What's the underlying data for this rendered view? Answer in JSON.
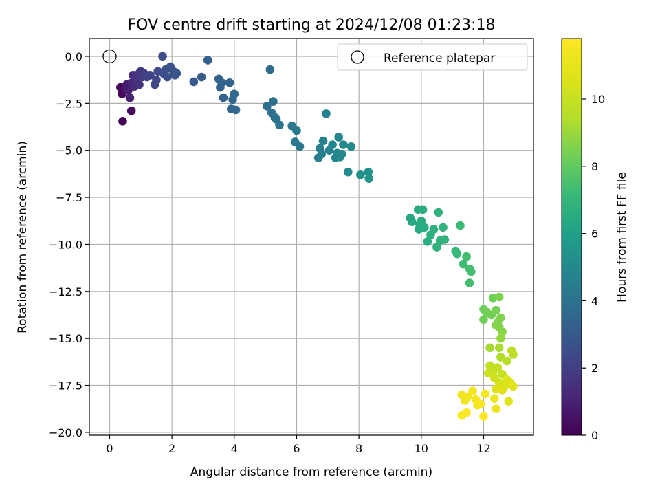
{
  "chart_data": {
    "type": "scatter",
    "title": "FOV centre drift starting at 2024/12/08 01:23:18",
    "xlabel": "Angular distance from reference (arcmin)",
    "ylabel": "Rotation from reference (arcmin)",
    "xlim": [
      -0.65,
      13.6
    ],
    "ylim": [
      -20.15,
      0.95
    ],
    "xticks": [
      0,
      2,
      4,
      6,
      8,
      10,
      12
    ],
    "yticks": [
      0.0,
      -2.5,
      -5.0,
      -7.5,
      -10.0,
      -12.5,
      -15.0,
      -17.5,
      -20.0
    ],
    "xtick_labels": [
      "0",
      "2",
      "4",
      "6",
      "8",
      "10",
      "12"
    ],
    "ytick_labels": [
      "0.0",
      "−2.5",
      "−5.0",
      "−7.5",
      "−10.0",
      "−12.5",
      "−15.0",
      "−17.5",
      "−20.0"
    ],
    "grid": true,
    "legend": {
      "position": "top-right",
      "label": "Reference platepar"
    },
    "reference_point": {
      "x": 0,
      "y": 0
    },
    "colorbar": {
      "label": "Hours from first FF file",
      "colormap": "viridis",
      "range": [
        0,
        11.8
      ],
      "ticks": [
        0,
        2,
        4,
        6,
        8,
        10
      ],
      "tick_labels": [
        "0",
        "2",
        "4",
        "6",
        "8",
        "10"
      ]
    },
    "points": [
      {
        "x": 0.35,
        "y": -1.65,
        "t": 0.2
      },
      {
        "x": 0.4,
        "y": -2.0,
        "t": 0.2
      },
      {
        "x": 0.42,
        "y": -3.45,
        "t": 0.1
      },
      {
        "x": 0.5,
        "y": -1.7,
        "t": 0.5
      },
      {
        "x": 0.55,
        "y": -1.5,
        "t": 0.8
      },
      {
        "x": 0.6,
        "y": -1.8,
        "t": 0.9
      },
      {
        "x": 0.65,
        "y": -2.2,
        "t": 1.0
      },
      {
        "x": 0.7,
        "y": -2.9,
        "t": 0.3
      },
      {
        "x": 0.72,
        "y": -1.4,
        "t": 1.2
      },
      {
        "x": 0.75,
        "y": -1.0,
        "t": 1.4
      },
      {
        "x": 0.8,
        "y": -1.6,
        "t": 1.3
      },
      {
        "x": 0.85,
        "y": -1.2,
        "t": 1.5
      },
      {
        "x": 0.9,
        "y": -1.0,
        "t": 1.6
      },
      {
        "x": 0.95,
        "y": -0.9,
        "t": 1.7
      },
      {
        "x": 0.95,
        "y": -1.5,
        "t": 1.6
      },
      {
        "x": 1.0,
        "y": -0.8,
        "t": 1.8
      },
      {
        "x": 1.05,
        "y": -1.1,
        "t": 1.9
      },
      {
        "x": 1.1,
        "y": -0.9,
        "t": 2.0
      },
      {
        "x": 1.2,
        "y": -1.1,
        "t": 2.1
      },
      {
        "x": 1.3,
        "y": -1.0,
        "t": 2.1
      },
      {
        "x": 1.45,
        "y": -1.5,
        "t": 2.3
      },
      {
        "x": 1.5,
        "y": -1.25,
        "t": 2.3
      },
      {
        "x": 1.55,
        "y": -0.8,
        "t": 2.4
      },
      {
        "x": 1.7,
        "y": 0.0,
        "t": 2.5
      },
      {
        "x": 1.75,
        "y": -0.95,
        "t": 2.5
      },
      {
        "x": 1.8,
        "y": -0.7,
        "t": 2.6
      },
      {
        "x": 1.85,
        "y": -1.1,
        "t": 2.6
      },
      {
        "x": 1.95,
        "y": -0.55,
        "t": 2.7
      },
      {
        "x": 2.05,
        "y": -0.8,
        "t": 2.7
      },
      {
        "x": 2.1,
        "y": -1.0,
        "t": 2.8
      },
      {
        "x": 2.15,
        "y": -0.9,
        "t": 2.8
      },
      {
        "x": 2.7,
        "y": -1.35,
        "t": 3.0
      },
      {
        "x": 2.95,
        "y": -1.1,
        "t": 3.1
      },
      {
        "x": 3.15,
        "y": -0.2,
        "t": 3.2
      },
      {
        "x": 3.5,
        "y": -1.2,
        "t": 3.3
      },
      {
        "x": 3.55,
        "y": -1.65,
        "t": 3.3
      },
      {
        "x": 3.6,
        "y": -1.4,
        "t": 3.35
      },
      {
        "x": 3.65,
        "y": -2.2,
        "t": 3.4
      },
      {
        "x": 3.85,
        "y": -1.4,
        "t": 3.4
      },
      {
        "x": 3.9,
        "y": -2.8,
        "t": 3.5
      },
      {
        "x": 3.95,
        "y": -2.3,
        "t": 3.5
      },
      {
        "x": 4.0,
        "y": -2.0,
        "t": 3.55
      },
      {
        "x": 4.05,
        "y": -2.85,
        "t": 3.6
      },
      {
        "x": 5.05,
        "y": -2.65,
        "t": 3.8
      },
      {
        "x": 5.15,
        "y": -0.7,
        "t": 3.7
      },
      {
        "x": 5.2,
        "y": -3.0,
        "t": 3.9
      },
      {
        "x": 5.25,
        "y": -2.4,
        "t": 3.9
      },
      {
        "x": 5.3,
        "y": -3.25,
        "t": 4.0
      },
      {
        "x": 5.35,
        "y": -3.35,
        "t": 4.0
      },
      {
        "x": 5.45,
        "y": -3.65,
        "t": 4.1
      },
      {
        "x": 5.85,
        "y": -3.7,
        "t": 4.2
      },
      {
        "x": 5.95,
        "y": -4.55,
        "t": 4.3
      },
      {
        "x": 6.0,
        "y": -3.95,
        "t": 4.3
      },
      {
        "x": 6.1,
        "y": -4.8,
        "t": 4.35
      },
      {
        "x": 6.7,
        "y": -5.4,
        "t": 4.6
      },
      {
        "x": 6.75,
        "y": -4.9,
        "t": 4.6
      },
      {
        "x": 6.8,
        "y": -5.2,
        "t": 4.65
      },
      {
        "x": 6.85,
        "y": -4.5,
        "t": 4.7
      },
      {
        "x": 6.95,
        "y": -3.05,
        "t": 4.7
      },
      {
        "x": 7.05,
        "y": -5.0,
        "t": 4.75
      },
      {
        "x": 7.15,
        "y": -4.7,
        "t": 4.8
      },
      {
        "x": 7.25,
        "y": -5.4,
        "t": 4.85
      },
      {
        "x": 7.3,
        "y": -5.15,
        "t": 4.9
      },
      {
        "x": 7.35,
        "y": -4.3,
        "t": 4.9
      },
      {
        "x": 7.4,
        "y": -5.35,
        "t": 4.95
      },
      {
        "x": 7.45,
        "y": -5.2,
        "t": 5.0
      },
      {
        "x": 7.5,
        "y": -4.7,
        "t": 5.0
      },
      {
        "x": 7.65,
        "y": -6.15,
        "t": 5.1
      },
      {
        "x": 7.75,
        "y": -4.8,
        "t": 5.1
      },
      {
        "x": 8.05,
        "y": -6.3,
        "t": 5.3
      },
      {
        "x": 8.3,
        "y": -6.15,
        "t": 5.35
      },
      {
        "x": 8.32,
        "y": -6.5,
        "t": 5.4
      },
      {
        "x": 9.65,
        "y": -8.6,
        "t": 6.3
      },
      {
        "x": 9.7,
        "y": -8.8,
        "t": 6.35
      },
      {
        "x": 9.9,
        "y": -8.15,
        "t": 6.4
      },
      {
        "x": 9.92,
        "y": -9.2,
        "t": 6.45
      },
      {
        "x": 9.95,
        "y": -8.95,
        "t": 6.45
      },
      {
        "x": 10.0,
        "y": -8.75,
        "t": 6.5
      },
      {
        "x": 10.05,
        "y": -8.15,
        "t": 6.5
      },
      {
        "x": 10.1,
        "y": -9.1,
        "t": 6.55
      },
      {
        "x": 10.2,
        "y": -9.85,
        "t": 6.6
      },
      {
        "x": 10.3,
        "y": -9.5,
        "t": 6.7
      },
      {
        "x": 10.4,
        "y": -9.2,
        "t": 6.75
      },
      {
        "x": 10.5,
        "y": -10.15,
        "t": 6.8
      },
      {
        "x": 10.55,
        "y": -8.3,
        "t": 6.8
      },
      {
        "x": 10.6,
        "y": -9.8,
        "t": 6.85
      },
      {
        "x": 10.7,
        "y": -9.1,
        "t": 6.9
      },
      {
        "x": 10.75,
        "y": -9.75,
        "t": 6.9
      },
      {
        "x": 11.1,
        "y": -10.35,
        "t": 7.1
      },
      {
        "x": 11.15,
        "y": -10.5,
        "t": 7.15
      },
      {
        "x": 11.25,
        "y": -9.0,
        "t": 7.2
      },
      {
        "x": 11.35,
        "y": -11.05,
        "t": 7.3
      },
      {
        "x": 11.45,
        "y": -10.65,
        "t": 7.35
      },
      {
        "x": 11.55,
        "y": -11.3,
        "t": 7.4
      },
      {
        "x": 11.6,
        "y": -11.45,
        "t": 7.45
      },
      {
        "x": 11.55,
        "y": -12.05,
        "t": 7.4
      },
      {
        "x": 12.0,
        "y": -13.45,
        "t": 8.2
      },
      {
        "x": 12.0,
        "y": -14.0,
        "t": 8.25
      },
      {
        "x": 12.1,
        "y": -13.6,
        "t": 8.3
      },
      {
        "x": 12.25,
        "y": -13.75,
        "t": 8.35
      },
      {
        "x": 12.3,
        "y": -12.85,
        "t": 8.3
      },
      {
        "x": 12.4,
        "y": -13.5,
        "t": 8.4
      },
      {
        "x": 12.45,
        "y": -14.15,
        "t": 8.45
      },
      {
        "x": 12.5,
        "y": -12.8,
        "t": 8.5
      },
      {
        "x": 12.55,
        "y": -13.9,
        "t": 8.55
      },
      {
        "x": 12.5,
        "y": -14.4,
        "t": 8.6
      },
      {
        "x": 12.6,
        "y": -14.65,
        "t": 8.7
      },
      {
        "x": 12.4,
        "y": -14.3,
        "t": 8.65
      },
      {
        "x": 12.55,
        "y": -15.0,
        "t": 8.9
      },
      {
        "x": 12.2,
        "y": -15.5,
        "t": 9.2
      },
      {
        "x": 12.5,
        "y": -15.5,
        "t": 9.3
      },
      {
        "x": 12.55,
        "y": -16.0,
        "t": 9.4
      },
      {
        "x": 12.75,
        "y": -16.2,
        "t": 9.5
      },
      {
        "x": 12.9,
        "y": -15.65,
        "t": 9.6
      },
      {
        "x": 12.95,
        "y": -15.85,
        "t": 9.65
      },
      {
        "x": 12.2,
        "y": -16.45,
        "t": 9.8
      },
      {
        "x": 12.3,
        "y": -16.8,
        "t": 9.9
      },
      {
        "x": 12.45,
        "y": -16.55,
        "t": 9.95
      },
      {
        "x": 12.6,
        "y": -16.9,
        "t": 10.0
      },
      {
        "x": 12.15,
        "y": -16.85,
        "t": 10.1
      },
      {
        "x": 12.35,
        "y": -17.1,
        "t": 10.2
      },
      {
        "x": 12.5,
        "y": -17.35,
        "t": 10.3
      },
      {
        "x": 12.55,
        "y": -17.55,
        "t": 10.4
      },
      {
        "x": 12.7,
        "y": -17.5,
        "t": 10.5
      },
      {
        "x": 12.75,
        "y": -17.2,
        "t": 10.55
      },
      {
        "x": 12.85,
        "y": -17.35,
        "t": 10.6
      },
      {
        "x": 12.4,
        "y": -17.7,
        "t": 10.7
      },
      {
        "x": 12.6,
        "y": -17.75,
        "t": 10.75
      },
      {
        "x": 12.8,
        "y": -18.35,
        "t": 10.8
      },
      {
        "x": 12.95,
        "y": -17.55,
        "t": 10.85
      },
      {
        "x": 11.3,
        "y": -18.0,
        "t": 11.3
      },
      {
        "x": 11.4,
        "y": -18.3,
        "t": 11.35
      },
      {
        "x": 11.5,
        "y": -18.1,
        "t": 11.4
      },
      {
        "x": 11.65,
        "y": -17.8,
        "t": 11.45
      },
      {
        "x": 11.75,
        "y": -18.25,
        "t": 11.5
      },
      {
        "x": 11.8,
        "y": -18.55,
        "t": 11.55
      },
      {
        "x": 11.9,
        "y": -18.5,
        "t": 11.6
      },
      {
        "x": 12.05,
        "y": -17.95,
        "t": 11.5
      },
      {
        "x": 12.35,
        "y": -18.2,
        "t": 11.2
      },
      {
        "x": 12.4,
        "y": -18.75,
        "t": 11.3
      },
      {
        "x": 11.3,
        "y": -19.1,
        "t": 11.7
      },
      {
        "x": 11.45,
        "y": -18.95,
        "t": 11.75
      },
      {
        "x": 12.0,
        "y": -19.15,
        "t": 11.8
      }
    ]
  }
}
